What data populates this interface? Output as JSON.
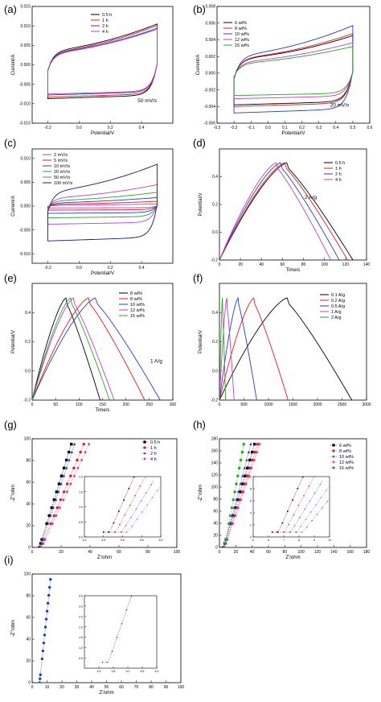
{
  "chart_data": [
    {
      "id": "a",
      "type": "line",
      "label": "(a)",
      "xlabel": "Potential/V",
      "ylabel": "Current/A",
      "xlim": [
        -0.3,
        0.6
      ],
      "ylim": [
        -0.015,
        0.015
      ],
      "xticks": [
        "-0.2",
        "0.0",
        "0.2",
        "0.4"
      ],
      "xtick_vals": [
        -0.2,
        0.0,
        0.2,
        0.4
      ],
      "yticks": [
        "-0.015",
        "-0.010",
        "-0.005",
        "0.000",
        "0.005",
        "0.010",
        "0.015"
      ],
      "ytick_vals": [
        -0.015,
        -0.01,
        -0.005,
        0.0,
        0.005,
        0.01,
        0.015
      ],
      "annotation": "50 mV/s",
      "series": [
        {
          "name": "0.5 h",
          "color": "#000000",
          "kind": "cv",
          "x0": -0.2,
          "x1": 0.5,
          "amp": 0.009,
          "slope": 0.003
        },
        {
          "name": "1 h",
          "color": "#e41a1c",
          "kind": "cv",
          "x0": -0.2,
          "x1": 0.5,
          "amp": 0.0085,
          "slope": 0.0032
        },
        {
          "name": "2 h",
          "color": "#1f3fbf",
          "kind": "cv",
          "x0": -0.2,
          "x1": 0.5,
          "amp": 0.008,
          "slope": 0.0028
        },
        {
          "name": "4 h",
          "color": "#c040c0",
          "kind": "cv",
          "x0": -0.2,
          "x1": 0.5,
          "amp": 0.0077,
          "slope": 0.0029
        }
      ]
    },
    {
      "id": "b",
      "type": "line",
      "label": "(b)",
      "xlabel": "Potential/V",
      "ylabel": "Current/A",
      "xlim": [
        -0.3,
        0.6
      ],
      "ylim": [
        -0.006,
        0.008
      ],
      "xticks": [
        "-0.3",
        "-0.2",
        "-0.1",
        "0.0",
        "0.1",
        "0.2",
        "0.3",
        "0.4",
        "0.5",
        "0.6"
      ],
      "xtick_vals": [
        -0.3,
        -0.2,
        -0.1,
        0.0,
        0.1,
        0.2,
        0.3,
        0.4,
        0.5,
        0.6
      ],
      "yticks": [
        "-0.006",
        "-0.004",
        "-0.002",
        "0.000",
        "0.002",
        "0.004",
        "0.006",
        "0.008"
      ],
      "ytick_vals": [
        -0.006,
        -0.004,
        -0.002,
        0.0,
        0.002,
        0.004,
        0.006,
        0.008
      ],
      "annotation": "20 mV/s",
      "series": [
        {
          "name": "6 wt%",
          "color": "#000000",
          "kind": "cv",
          "x0": -0.2,
          "x1": 0.5,
          "amp": 0.004,
          "slope": 0.001
        },
        {
          "name": "8 wt%",
          "color": "#e41a1c",
          "kind": "cv",
          "x0": -0.2,
          "x1": 0.5,
          "amp": 0.0042,
          "slope": 0.0011
        },
        {
          "name": "10 wt%",
          "color": "#1f3fbf",
          "kind": "cv",
          "x0": -0.2,
          "x1": 0.5,
          "amp": 0.005,
          "slope": 0.0014
        },
        {
          "name": "12 wt%",
          "color": "#c040c0",
          "kind": "cv",
          "x0": -0.2,
          "x1": 0.5,
          "amp": 0.0032,
          "slope": 0.0009
        },
        {
          "name": "15 wt%",
          "color": "#2ca02c",
          "kind": "cv",
          "x0": -0.2,
          "x1": 0.5,
          "amp": 0.0028,
          "slope": 0.0008
        }
      ]
    },
    {
      "id": "c",
      "type": "line",
      "label": "(c)",
      "xlabel": "Potential/V",
      "ylabel": "Current/A",
      "xlim": [
        -0.3,
        0.6
      ],
      "ylim": [
        -0.012,
        0.012
      ],
      "xticks": [
        "-0.2",
        "0.0",
        "0.2",
        "0.4"
      ],
      "xtick_vals": [
        -0.2,
        0.0,
        0.2,
        0.4
      ],
      "yticks": [
        "-0.010",
        "-0.005",
        "0.000",
        "0.005",
        "0.010"
      ],
      "ytick_vals": [
        -0.01,
        -0.005,
        0.0,
        0.005,
        0.01
      ],
      "annotation": "",
      "series": [
        {
          "name": "2 mV/s",
          "color": "#c040c0",
          "kind": "cv",
          "x0": -0.2,
          "x1": 0.5,
          "amp": 0.0004,
          "slope": 0.0001
        },
        {
          "name": "5 mV/s",
          "color": "#e41a1c",
          "kind": "cv",
          "x0": -0.2,
          "x1": 0.5,
          "amp": 0.0009,
          "slope": 0.0002
        },
        {
          "name": "10 mV/s",
          "color": "#1f3fbf",
          "kind": "cv",
          "x0": -0.2,
          "x1": 0.5,
          "amp": 0.0016,
          "slope": 0.0004
        },
        {
          "name": "20 mV/s",
          "color": "#2ca02c",
          "kind": "cv",
          "x0": -0.2,
          "x1": 0.5,
          "amp": 0.0026,
          "slope": 0.0006
        },
        {
          "name": "50 mV/s",
          "color": "#c040c0",
          "kind": "cv",
          "x0": -0.2,
          "x1": 0.5,
          "amp": 0.004,
          "slope": 0.001
        },
        {
          "name": "100 mV/s",
          "color": "#1a1a6e",
          "kind": "cv",
          "x0": -0.2,
          "x1": 0.5,
          "amp": 0.0076,
          "slope": 0.0024
        }
      ]
    },
    {
      "id": "d",
      "type": "line",
      "label": "(d)",
      "xlabel": "Time/s",
      "ylabel": "Potential/V",
      "xlim": [
        0,
        140
      ],
      "ylim": [
        -0.2,
        0.6
      ],
      "xticks": [
        "0",
        "20",
        "40",
        "60",
        "80",
        "100",
        "120",
        "140"
      ],
      "xtick_vals": [
        0,
        20,
        40,
        60,
        80,
        100,
        120,
        140
      ],
      "yticks": [
        "-0.2",
        "0.0",
        "0.2",
        "0.4"
      ],
      "ytick_vals": [
        -0.2,
        0.0,
        0.2,
        0.4
      ],
      "annotation": "2 A/g",
      "series": [
        {
          "name": "0.5 h",
          "color": "#000000",
          "kind": "gcd",
          "tpeak": 64,
          "tend": 127,
          "vmin": -0.2,
          "vmax": 0.5
        },
        {
          "name": "1 h",
          "color": "#e41a1c",
          "kind": "gcd",
          "tpeak": 62,
          "tend": 122,
          "vmin": -0.2,
          "vmax": 0.5
        },
        {
          "name": "2 h",
          "color": "#1f3fbf",
          "kind": "gcd",
          "tpeak": 58,
          "tend": 114,
          "vmin": -0.2,
          "vmax": 0.5
        },
        {
          "name": "4 h",
          "color": "#c040c0",
          "kind": "gcd",
          "tpeak": 54,
          "tend": 106,
          "vmin": -0.2,
          "vmax": 0.5
        }
      ]
    },
    {
      "id": "e",
      "type": "line",
      "label": "(e)",
      "xlabel": "Time/s",
      "ylabel": "Potential/V",
      "xlim": [
        0,
        300
      ],
      "ylim": [
        -0.2,
        0.6
      ],
      "xticks": [
        "0",
        "50",
        "100",
        "150",
        "200",
        "250",
        "300"
      ],
      "xtick_vals": [
        0,
        50,
        100,
        150,
        200,
        250,
        300
      ],
      "yticks": [
        "-0.2",
        "0.0",
        "0.2",
        "0.4"
      ],
      "ytick_vals": [
        -0.2,
        0.0,
        0.2,
        0.4
      ],
      "annotation": "1 A/g",
      "series": [
        {
          "name": "8 wt%",
          "color": "#000000",
          "kind": "gcd",
          "tpeak": 72,
          "tend": 145,
          "vmin": -0.2,
          "vmax": 0.5
        },
        {
          "name": "8 wt%",
          "color": "#e41a1c",
          "kind": "gcd",
          "tpeak": 120,
          "tend": 240,
          "vmin": -0.2,
          "vmax": 0.5
        },
        {
          "name": "10 wt%",
          "color": "#1f3fbf",
          "kind": "gcd",
          "tpeak": 135,
          "tend": 273,
          "vmin": -0.2,
          "vmax": 0.5
        },
        {
          "name": "12 wt%",
          "color": "#c040c0",
          "kind": "gcd",
          "tpeak": 88,
          "tend": 175,
          "vmin": -0.2,
          "vmax": 0.5
        },
        {
          "name": "15 wt%",
          "color": "#2ca02c",
          "kind": "gcd",
          "tpeak": 82,
          "tend": 165,
          "vmin": -0.2,
          "vmax": 0.5
        }
      ]
    },
    {
      "id": "f",
      "type": "line",
      "label": "(f)",
      "xlabel": "",
      "ylabel": "Potential/V",
      "xlim": [
        0,
        3000
      ],
      "ylim": [
        -0.2,
        0.6
      ],
      "xticks": [
        "0",
        "500",
        "1000",
        "1500",
        "2000",
        "2500",
        "3000"
      ],
      "xtick_vals": [
        0,
        500,
        1000,
        1500,
        2000,
        2500,
        3000
      ],
      "yticks": [
        "-0.2",
        "0.0",
        "0.2",
        "0.4"
      ],
      "ytick_vals": [
        -0.2,
        0.0,
        0.2,
        0.4
      ],
      "annotation": "",
      "series": [
        {
          "name": "0.1 A/g",
          "color": "#000000",
          "kind": "gcd",
          "tpeak": 1380,
          "tend": 2700,
          "vmin": -0.2,
          "vmax": 0.5
        },
        {
          "name": "0.2 A/g",
          "color": "#e41a1c",
          "kind": "gcd",
          "tpeak": 700,
          "tend": 1400,
          "vmin": -0.2,
          "vmax": 0.5
        },
        {
          "name": "0.5 A/g",
          "color": "#1f3fbf",
          "kind": "gcd",
          "tpeak": 380,
          "tend": 760,
          "vmin": -0.2,
          "vmax": 0.5
        },
        {
          "name": "1 A/g",
          "color": "#c040c0",
          "kind": "gcd",
          "tpeak": 150,
          "tend": 300,
          "vmin": -0.2,
          "vmax": 0.5
        },
        {
          "name": "2 A/g",
          "color": "#2ca02c",
          "kind": "gcd",
          "tpeak": 60,
          "tend": 125,
          "vmin": -0.2,
          "vmax": 0.5
        }
      ]
    },
    {
      "id": "g",
      "type": "scatter",
      "label": "(g)",
      "xlabel": "Z'/ohm",
      "ylabel": "-Z''/ohm",
      "xlim": [
        0,
        100
      ],
      "ylim": [
        0,
        100
      ],
      "xticks": [
        "0",
        "20",
        "40",
        "60",
        "80",
        "100"
      ],
      "xtick_vals": [
        0,
        20,
        40,
        60,
        80,
        100
      ],
      "yticks": [
        "0",
        "20",
        "40",
        "60",
        "80",
        "100"
      ],
      "ytick_vals": [
        0,
        20,
        40,
        60,
        80,
        100
      ],
      "annotation": "",
      "series": [
        {
          "name": "0.5 h",
          "color": "#000000",
          "marker": "square",
          "kind": "eis",
          "x0": 5,
          "slope": 4.3
        },
        {
          "name": "1 h",
          "color": "#e41a1c",
          "marker": "circle",
          "kind": "eis",
          "x0": 6,
          "slope": 3.2
        },
        {
          "name": "2 h",
          "color": "#1f3fbf",
          "marker": "triangle",
          "kind": "eis",
          "x0": 5.5,
          "slope": 4.0
        },
        {
          "name": "4 h",
          "color": "#c040c0",
          "marker": "diamond",
          "kind": "eis",
          "x0": 6.5,
          "slope": 2.9
        }
      ],
      "inset": {
        "xlim": [
          4,
          6
        ],
        "ylim": [
          0,
          2
        ],
        "xticks": [
          "4.0",
          "4.5",
          "5.0",
          "5.5",
          "6.0"
        ],
        "xtick_vals": [
          4,
          4.5,
          5,
          5.5,
          6
        ],
        "yticks": [
          "0.0",
          "0.5",
          "1.0",
          "1.5",
          "2.0"
        ],
        "ytick_vals": [
          0,
          0.5,
          1,
          1.5,
          2
        ]
      }
    },
    {
      "id": "h",
      "type": "scatter",
      "label": "(h)",
      "xlabel": "Z'/ohm",
      "ylabel": "-Z''/ohm",
      "xlim": [
        0,
        180
      ],
      "ylim": [
        0,
        180
      ],
      "xticks": [
        "0",
        "20",
        "40",
        "60",
        "80",
        "100",
        "120",
        "140",
        "160",
        "180"
      ],
      "xtick_vals": [
        0,
        20,
        40,
        60,
        80,
        100,
        120,
        140,
        160,
        180
      ],
      "yticks": [
        "0",
        "20",
        "40",
        "60",
        "80",
        "100",
        "120",
        "140",
        "160",
        "180"
      ],
      "ytick_vals": [
        0,
        20,
        40,
        60,
        80,
        100,
        120,
        140,
        160,
        180
      ],
      "annotation": "",
      "series": [
        {
          "name": "6 wt%",
          "color": "#000000",
          "marker": "square",
          "kind": "eis",
          "x0": 5,
          "slope": 4.5
        },
        {
          "name": "8 wt%",
          "color": "#e41a1c",
          "marker": "circle",
          "kind": "eis",
          "x0": 6,
          "slope": 4.2
        },
        {
          "name": "10 wt%",
          "color": "#1f3fbf",
          "marker": "triangle",
          "kind": "eis",
          "x0": 5.5,
          "slope": 5.2
        },
        {
          "name": "12 wt%",
          "color": "#c040c0",
          "marker": "diamond",
          "kind": "eis",
          "x0": 6.5,
          "slope": 4.0
        },
        {
          "name": "15 wt%",
          "color": "#2ca02c",
          "marker": "circle",
          "kind": "eis",
          "x0": 6,
          "slope": 7.2
        }
      ],
      "inset": {
        "xlim": [
          5,
          10
        ],
        "ylim": [
          0,
          10
        ],
        "xticks": [
          "5",
          "6",
          "7",
          "8",
          "9",
          "10"
        ],
        "xtick_vals": [
          5,
          6,
          7,
          8,
          9,
          10
        ],
        "yticks": [
          "0",
          "2",
          "4",
          "6",
          "8",
          "10"
        ],
        "ytick_vals": [
          0,
          2,
          4,
          6,
          8,
          10
        ]
      }
    },
    {
      "id": "i",
      "type": "scatter",
      "label": "(i)",
      "xlabel": "Z'/ohm",
      "ylabel": "-Z''/ohm",
      "xlim": [
        0,
        100
      ],
      "ylim": [
        0,
        100
      ],
      "xticks": [
        "0",
        "10",
        "20",
        "30",
        "40",
        "50",
        "60",
        "70",
        "80",
        "90",
        "100"
      ],
      "xtick_vals": [
        0,
        10,
        20,
        30,
        40,
        50,
        60,
        70,
        80,
        90,
        100
      ],
      "yticks": [
        "0",
        "20",
        "40",
        "60",
        "80",
        "100"
      ],
      "ytick_vals": [
        0,
        20,
        40,
        60,
        80,
        100
      ],
      "annotation": "",
      "series": [
        {
          "name": "",
          "color": "#1f3fbf",
          "marker": "circle",
          "kind": "eis",
          "x0": 5,
          "slope": 13
        }
      ],
      "inset": {
        "xlim": [
          4,
          6
        ],
        "ylim": [
          0,
          3.5
        ],
        "xticks": [
          "4.4",
          "4.8",
          "5.2",
          "5.6",
          "6.0"
        ],
        "xtick_vals": [
          4.4,
          4.8,
          5.2,
          5.6,
          6.0
        ],
        "yticks": [
          "0.5",
          "1.0",
          "1.5",
          "2.0",
          "2.5",
          "3.0",
          "3.5"
        ],
        "ytick_vals": [
          0.5,
          1,
          1.5,
          2,
          2.5,
          3,
          3.5
        ]
      }
    }
  ]
}
